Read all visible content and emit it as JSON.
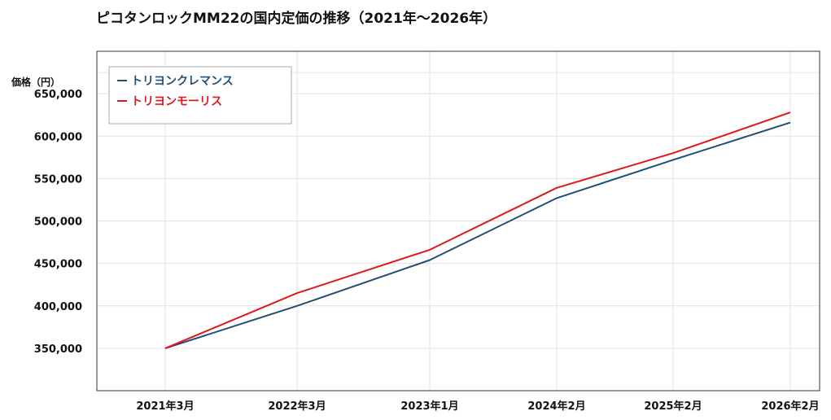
{
  "chart_data": {
    "type": "line",
    "title": "ピコタンロックMM22の国内定価の推移（2021年～2026年）",
    "ylabel": "価格（円）",
    "xlabel": "",
    "categories": [
      "2021年3月",
      "2022年3月",
      "2023年1月",
      "2024年2月",
      "2025年2月",
      "2026年2月"
    ],
    "x_dates": [
      "2021-03",
      "2022-03",
      "2023-01",
      "2024-02",
      "2025-02",
      "2026-02"
    ],
    "ylim": [
      300000,
      700000
    ],
    "yticks": [
      350000,
      400000,
      450000,
      500000,
      550000,
      600000,
      650000
    ],
    "ytick_labels": [
      "350,000",
      "400,000",
      "450,000",
      "500,000",
      "550,000",
      "600,000",
      "650,000"
    ],
    "grid": true,
    "legend_position": "top-left",
    "series": [
      {
        "name": "トリヨンクレマンス",
        "color": "#1f4e79",
        "values": [
          350000,
          400000,
          454000,
          527000,
          572000,
          616000
        ]
      },
      {
        "name": "トリヨンモーリス",
        "color": "#e3141b",
        "values": [
          350000,
          415000,
          466000,
          539000,
          580000,
          628000
        ]
      }
    ]
  }
}
